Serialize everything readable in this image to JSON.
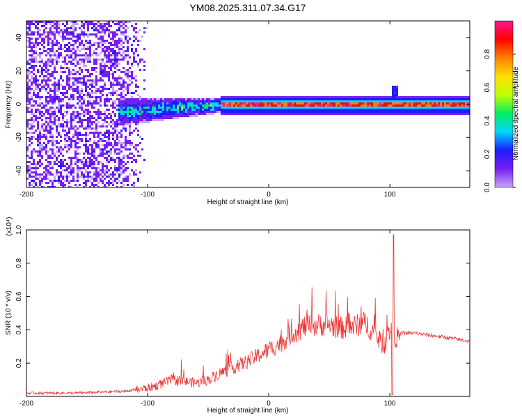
{
  "title": "YM08.2025.311.07.34.G17",
  "chart_data": [
    {
      "type": "heatmap",
      "xlabel": "Height of straight line (km)",
      "ylabel": "Frequency (Hz)",
      "xlim": [
        -200,
        166
      ],
      "ylim": [
        -50,
        50
      ],
      "xticks": [
        -200,
        -100,
        0,
        100
      ],
      "yticks": [
        -40,
        -20,
        0,
        20,
        40
      ],
      "colorbar": {
        "label": "Normalized spectral amplitude",
        "range": [
          0,
          1
        ],
        "ticks": [
          "0.0",
          "0.2",
          "0.4",
          "0.6",
          "0.8"
        ],
        "colors": [
          "#c7a6f7",
          "#7a1ef0",
          "#1c1cff",
          "#00d5ff",
          "#00f060",
          "#c0ff00",
          "#ffe000",
          "#ff8000",
          "#ff0000",
          "#ff1493"
        ]
      },
      "features": {
        "noise_region_x": [
          -200,
          -100
        ],
        "transition_x": [
          -125,
          -40
        ],
        "carrier_x": [
          -40,
          166
        ],
        "carrier_frequency": 0,
        "spike_x": 103
      }
    },
    {
      "type": "line",
      "xlabel": "Height of straight line (km)",
      "ylabel": "SNR (10 * v/v)",
      "scale_label": "(x10⁴)",
      "xlim": [
        -200,
        166
      ],
      "ylim": [
        0,
        1.0
      ],
      "xticks": [
        -200,
        -100,
        0,
        100
      ],
      "yticks": [
        "0.2",
        "0.4",
        "0.6",
        "0.8",
        "1.0"
      ],
      "color": "#ee3333",
      "series": [
        {
          "x": [
            -200,
            -180,
            -160,
            -140,
            -120,
            -110,
            -100,
            -90,
            -80,
            -70,
            -60,
            -50,
            -40,
            -30,
            -20,
            -10,
            0,
            10,
            20,
            30,
            40,
            50,
            60,
            70,
            80,
            90,
            95,
            100,
            105,
            110,
            120,
            130,
            140,
            150,
            166
          ],
          "y": [
            0.02,
            0.02,
            0.02,
            0.025,
            0.03,
            0.04,
            0.05,
            0.07,
            0.1,
            0.09,
            0.08,
            0.1,
            0.14,
            0.17,
            0.2,
            0.24,
            0.28,
            0.32,
            0.38,
            0.42,
            0.43,
            0.43,
            0.41,
            0.42,
            0.44,
            0.35,
            0.3,
            0.4,
            0.35,
            0.38,
            0.38,
            0.37,
            0.36,
            0.35,
            0.33
          ]
        }
      ]
    }
  ]
}
